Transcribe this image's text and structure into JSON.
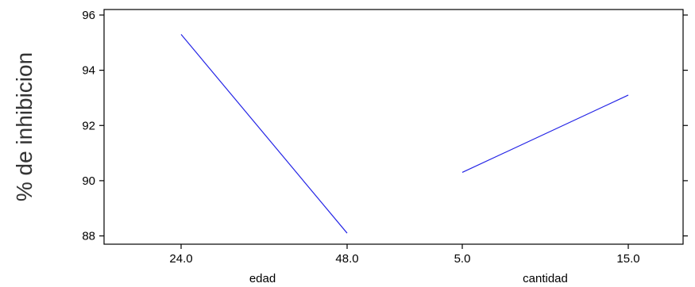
{
  "chart_data": {
    "type": "line",
    "ylabel": "% de inhibicion",
    "ylim": [
      87.7,
      96.2
    ],
    "yticks": [
      88,
      90,
      92,
      94,
      96
    ],
    "ytick_labels": [
      "88",
      "90",
      "92",
      "94",
      "96"
    ],
    "grid": false,
    "panels": [
      {
        "xlabel": "edad",
        "x_ticks": [
          "24.0",
          "48.0"
        ],
        "series": [
          {
            "values": [
              95.3,
              88.1
            ]
          }
        ]
      },
      {
        "xlabel": "cantidad",
        "x_ticks": [
          "5.0",
          "15.0"
        ],
        "series": [
          {
            "values": [
              90.3,
              93.1
            ]
          }
        ]
      }
    ],
    "line_color": "#2424e6"
  }
}
